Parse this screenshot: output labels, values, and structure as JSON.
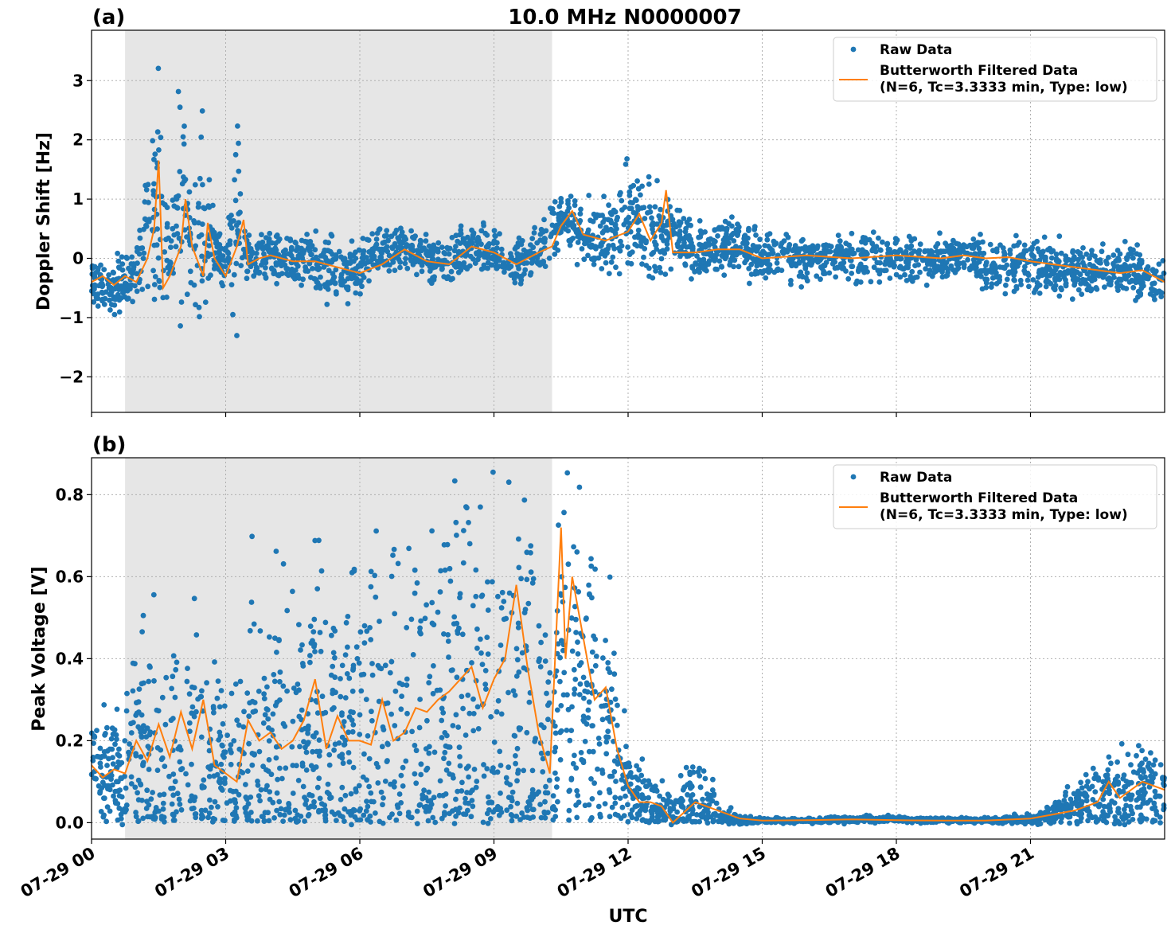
{
  "figure_title": "10.0 MHz N0000007",
  "chart_data": [
    {
      "panel_label": "(a)",
      "type": "scatter",
      "title": "10.0 MHz N0000007",
      "xlabel": "",
      "ylabel": "Doppler Shift [Hz]",
      "xlim_hours": [
        0,
        24
      ],
      "ylim": [
        -2.6,
        3.85
      ],
      "yticks": [
        -2,
        -1,
        0,
        1,
        2,
        3
      ],
      "ytick_labels": [
        "−2",
        "−1",
        "0",
        "1",
        "2",
        "3"
      ],
      "xtick_labels": [],
      "grid": true,
      "legend_position": "top-right",
      "shaded_region_hours": [
        0.75,
        10.3
      ],
      "shade_color": "#e6e6e6",
      "series": [
        {
          "name": "Raw Data",
          "type": "scatter",
          "color": "#1f77b4",
          "x": [
            0,
            0.5,
            0.75,
            1.0,
            1.25,
            1.5,
            1.75,
            2.0,
            2.25,
            2.5,
            2.75,
            3.0,
            3.25,
            3.5,
            4.0,
            4.5,
            5.0,
            5.5,
            6.0,
            6.5,
            7.0,
            7.5,
            8.0,
            8.5,
            9.0,
            9.5,
            10.0,
            10.5,
            11.0,
            11.5,
            12.0,
            12.5,
            13.0,
            13.5,
            14.0,
            14.5,
            15.0,
            16.0,
            17.0,
            18.0,
            19.0,
            19.5,
            20.0,
            20.5,
            21.0,
            22.0,
            23.0,
            24.0
          ],
          "y": [
            -0.4,
            -0.5,
            -0.4,
            -0.3,
            0.5,
            1.0,
            -0.3,
            1.2,
            0.0,
            0.8,
            0.1,
            0.0,
            0.6,
            0.0,
            0.0,
            0.0,
            -0.1,
            -0.2,
            -0.2,
            0.1,
            0.2,
            0.0,
            -0.1,
            0.2,
            0.1,
            -0.1,
            0.1,
            0.7,
            0.4,
            0.3,
            0.6,
            0.4,
            0.5,
            0.1,
            0.2,
            0.2,
            0.0,
            0.0,
            0.0,
            0.0,
            0.0,
            0.1,
            -0.1,
            -0.1,
            -0.1,
            -0.2,
            -0.2,
            -0.4
          ],
          "spread": [
            0.3,
            0.35,
            0.4,
            0.4,
            1.2,
            1.9,
            0.4,
            1.7,
            0.4,
            1.5,
            0.4,
            0.3,
            1.4,
            0.3,
            0.3,
            0.35,
            0.45,
            0.4,
            0.35,
            0.3,
            0.25,
            0.3,
            0.3,
            0.3,
            0.3,
            0.3,
            0.35,
            0.35,
            0.4,
            0.5,
            0.7,
            0.6,
            0.4,
            0.35,
            0.35,
            0.35,
            0.3,
            0.3,
            0.3,
            0.3,
            0.3,
            0.2,
            0.35,
            0.3,
            0.35,
            0.35,
            0.35,
            0.3
          ]
        },
        {
          "name": "Butterworth Filtered Data\n(N=6, Tc=3.3333 min, Type: low)",
          "type": "line",
          "color": "#ff7f0e",
          "x": [
            0,
            0.25,
            0.5,
            0.75,
            1.0,
            1.25,
            1.4,
            1.5,
            1.6,
            1.75,
            2.0,
            2.1,
            2.25,
            2.5,
            2.6,
            2.75,
            3.0,
            3.25,
            3.4,
            3.5,
            3.75,
            4.0,
            4.5,
            5.0,
            5.5,
            6.0,
            6.5,
            7.0,
            7.5,
            8.0,
            8.5,
            9.0,
            9.5,
            10.0,
            10.3,
            10.5,
            10.75,
            11.0,
            11.5,
            12.0,
            12.25,
            12.5,
            12.75,
            12.85,
            13.0,
            13.5,
            14.0,
            14.5,
            15.0,
            16.0,
            17.0,
            18.0,
            19.0,
            19.5,
            20.0,
            20.5,
            21.0,
            21.5,
            22.0,
            22.5,
            23.0,
            23.5,
            24.0
          ],
          "y": [
            -0.4,
            -0.3,
            -0.45,
            -0.3,
            -0.4,
            0.0,
            0.5,
            1.65,
            -0.5,
            -0.3,
            0.2,
            1.0,
            0.2,
            -0.3,
            0.6,
            0.0,
            -0.3,
            0.2,
            0.65,
            -0.1,
            0.0,
            0.05,
            -0.05,
            -0.05,
            -0.15,
            -0.25,
            -0.1,
            0.15,
            -0.05,
            -0.1,
            0.2,
            0.1,
            -0.1,
            0.1,
            0.2,
            0.55,
            0.8,
            0.4,
            0.3,
            0.45,
            0.75,
            0.3,
            0.6,
            1.15,
            0.1,
            0.1,
            0.15,
            0.15,
            0.0,
            0.05,
            0.0,
            0.05,
            0.0,
            0.05,
            0.0,
            0.02,
            -0.05,
            -0.1,
            -0.15,
            -0.2,
            -0.25,
            -0.2,
            -0.4
          ]
        }
      ]
    },
    {
      "panel_label": "(b)",
      "type": "scatter",
      "title": "",
      "xlabel": "UTC",
      "ylabel": "Peak Voltage [V]",
      "xlim_hours": [
        0,
        24
      ],
      "ylim": [
        -0.04,
        0.89
      ],
      "yticks": [
        0.0,
        0.2,
        0.4,
        0.6,
        0.8
      ],
      "ytick_labels": [
        "0.0",
        "0.2",
        "0.4",
        "0.6",
        "0.8"
      ],
      "xticks_hours": [
        0,
        3,
        6,
        9,
        12,
        15,
        18,
        21
      ],
      "xtick_labels": [
        "07-29 00",
        "07-29 03",
        "07-29 06",
        "07-29 09",
        "07-29 12",
        "07-29 15",
        "07-29 18",
        "07-29 21"
      ],
      "grid": true,
      "legend_position": "top-right",
      "shaded_region_hours": [
        0.75,
        10.3
      ],
      "shade_color": "#e6e6e6",
      "series": [
        {
          "name": "Raw Data",
          "type": "scatter",
          "color": "#1f77b4",
          "x": [
            0,
            0.5,
            1.0,
            1.5,
            2.0,
            2.5,
            3.0,
            3.5,
            4.0,
            4.5,
            5.0,
            5.5,
            6.0,
            6.5,
            7.0,
            7.5,
            8.0,
            8.5,
            9.0,
            9.5,
            10.0,
            10.3,
            10.5,
            10.75,
            11.0,
            11.5,
            11.75,
            12.0,
            12.5,
            13.0,
            13.5,
            14.0,
            14.5,
            15.0,
            16.0,
            17.0,
            18.0,
            19.0,
            20.0,
            21.0,
            21.5,
            22.0,
            22.5,
            23.0,
            23.5,
            24.0
          ],
          "y": [
            0.15,
            0.13,
            0.16,
            0.15,
            0.14,
            0.17,
            0.1,
            0.15,
            0.18,
            0.17,
            0.2,
            0.18,
            0.19,
            0.2,
            0.22,
            0.22,
            0.24,
            0.26,
            0.3,
            0.32,
            0.2,
            0.1,
            0.45,
            0.3,
            0.38,
            0.2,
            0.15,
            0.08,
            0.05,
            0.02,
            0.04,
            0.02,
            0.005,
            0.005,
            0.005,
            0.008,
            0.008,
            0.006,
            0.005,
            0.01,
            0.02,
            0.04,
            0.06,
            0.07,
            0.08,
            0.07
          ],
          "spread": [
            0.08,
            0.1,
            0.2,
            0.25,
            0.25,
            0.25,
            0.15,
            0.3,
            0.3,
            0.3,
            0.35,
            0.32,
            0.32,
            0.35,
            0.38,
            0.4,
            0.45,
            0.45,
            0.5,
            0.5,
            0.35,
            0.2,
            0.35,
            0.35,
            0.3,
            0.25,
            0.2,
            0.08,
            0.06,
            0.04,
            0.1,
            0.04,
            0.01,
            0.005,
            0.005,
            0.006,
            0.006,
            0.005,
            0.005,
            0.01,
            0.02,
            0.04,
            0.08,
            0.08,
            0.09,
            0.06
          ]
        },
        {
          "name": "Butterworth Filtered Data\n(N=6, Tc=3.3333 min, Type: low)",
          "type": "line",
          "color": "#ff7f0e",
          "x": [
            0,
            0.25,
            0.5,
            0.75,
            1.0,
            1.25,
            1.5,
            1.75,
            2.0,
            2.25,
            2.5,
            2.75,
            3.0,
            3.25,
            3.5,
            3.75,
            4.0,
            4.25,
            4.5,
            4.75,
            5.0,
            5.25,
            5.5,
            5.75,
            6.0,
            6.25,
            6.5,
            6.75,
            7.0,
            7.25,
            7.5,
            7.75,
            8.0,
            8.25,
            8.5,
            8.75,
            9.0,
            9.25,
            9.5,
            9.75,
            10.0,
            10.25,
            10.5,
            10.6,
            10.75,
            11.0,
            11.25,
            11.5,
            11.75,
            12.0,
            12.25,
            12.5,
            12.75,
            13.0,
            13.5,
            13.75,
            14.0,
            14.5,
            15.0,
            16.0,
            17.0,
            18.0,
            19.0,
            20.0,
            21.0,
            21.5,
            22.0,
            22.5,
            22.75,
            23.0,
            23.5,
            24.0
          ],
          "y": [
            0.14,
            0.11,
            0.13,
            0.12,
            0.2,
            0.15,
            0.24,
            0.16,
            0.27,
            0.18,
            0.3,
            0.14,
            0.12,
            0.1,
            0.25,
            0.2,
            0.22,
            0.18,
            0.2,
            0.25,
            0.35,
            0.18,
            0.26,
            0.2,
            0.2,
            0.19,
            0.3,
            0.2,
            0.22,
            0.28,
            0.27,
            0.3,
            0.32,
            0.35,
            0.38,
            0.28,
            0.35,
            0.4,
            0.58,
            0.38,
            0.22,
            0.12,
            0.72,
            0.4,
            0.6,
            0.45,
            0.3,
            0.33,
            0.18,
            0.09,
            0.05,
            0.05,
            0.04,
            0.0,
            0.05,
            0.04,
            0.03,
            0.01,
            0.005,
            0.006,
            0.008,
            0.006,
            0.005,
            0.005,
            0.01,
            0.02,
            0.03,
            0.05,
            0.1,
            0.06,
            0.1,
            0.08
          ]
        }
      ]
    }
  ]
}
